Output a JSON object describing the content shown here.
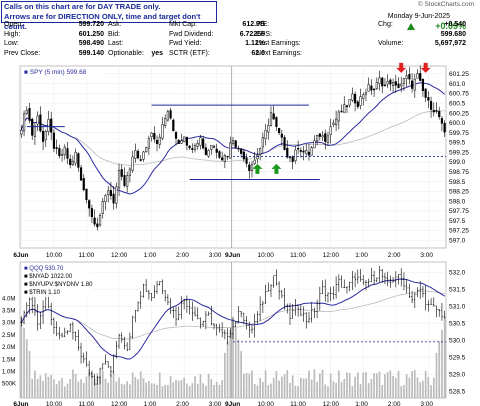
{
  "note": {
    "line1": "Calls on this chart are for DAY TRADE only.",
    "line2": "Arrows are for DIRECTION ONLY, time and target don't count."
  },
  "brand": "© StockCharts.com",
  "date": "Monday  9-Jun-2025",
  "change_pct": "+0.09%",
  "change_label": "Chg:",
  "change_value": "+0.540",
  "quote": {
    "col1": [
      [
        "Open:",
        "599.720"
      ],
      [
        "High:",
        "601.250"
      ],
      [
        "Low:",
        "598.490"
      ],
      [
        "Prev Close:",
        "599.140"
      ]
    ],
    "col2": [
      [
        "Ask:",
        ""
      ],
      [
        "Bid:",
        ""
      ],
      [
        "Last:",
        ""
      ],
      [
        "Optionable:",
        "yes"
      ]
    ],
    "col3": [
      [
        "Mkt Cap:",
        "612.9B"
      ],
      [
        "Fwd Dividend:",
        "6.72255"
      ],
      [
        "Fwd Yield:",
        "1.12%"
      ],
      [
        "SCTR (ETF):",
        "62.0"
      ]
    ],
    "col4": [
      [
        "P/E:",
        ""
      ],
      [
        "EPS:",
        ""
      ],
      [
        "Last Earnings:",
        ""
      ],
      [
        "Next Earnings:",
        ""
      ]
    ],
    "col5": [
      [
        "",
        ""
      ],
      [
        "",
        "+0.540"
      ],
      [
        "",
        "599.680"
      ],
      [
        "Volume:",
        "5,697,972"
      ]
    ]
  },
  "colors": {
    "candle": "#000000",
    "ma_fast": "#2a2aa0",
    "ma_slow": "#bbbbbb",
    "level": "#1a2a9a",
    "arrow_up": "#1a9a1a",
    "arrow_down": "#e02020",
    "volume": "#bbbbbb"
  },
  "chart_data": [
    {
      "type": "candlestick",
      "legend": "■ SPY (5 min) 599.68",
      "x_tick_labels": [
        "6Jun",
        "10:00",
        "11:00",
        "12:00",
        "1:00",
        "2:00",
        "3:00",
        "9Jun",
        "10:00",
        "11:00",
        "12:00",
        "1:00",
        "2:00",
        "3:00"
      ],
      "x_tick_positions": [
        0,
        12,
        24,
        36,
        48,
        60,
        72,
        78,
        90,
        102,
        114,
        126,
        138,
        150
      ],
      "ylim": [
        596.8,
        601.45
      ],
      "y_ticks": [
        597.0,
        597.25,
        597.5,
        597.75,
        598.0,
        598.25,
        598.5,
        598.75,
        599.0,
        599.25,
        599.5,
        599.75,
        600.0,
        600.25,
        600.5,
        600.75,
        601.0,
        601.25
      ],
      "y_tick_labels": [
        "597.0",
        "597.25",
        "597.5",
        "597.75",
        "598.0",
        "598.25",
        "598.5",
        "598.75",
        "599.0",
        "599.25",
        "599.5",
        "599.75",
        "600.0",
        "600.25",
        "600.5",
        "600.75",
        "601.0",
        "601.25"
      ],
      "close_anchors": [
        [
          0,
          599.9
        ],
        [
          2,
          600.4
        ],
        [
          4,
          599.7
        ],
        [
          6,
          600.15
        ],
        [
          8,
          599.55
        ],
        [
          10,
          600.0
        ],
        [
          12,
          599.4
        ],
        [
          14,
          599.1
        ],
        [
          16,
          599.3
        ],
        [
          18,
          598.9
        ],
        [
          20,
          599.2
        ],
        [
          22,
          598.5
        ],
        [
          24,
          598.1
        ],
        [
          26,
          597.6
        ],
        [
          28,
          597.4
        ],
        [
          30,
          597.9
        ],
        [
          32,
          598.3
        ],
        [
          34,
          598.0
        ],
        [
          36,
          598.7
        ],
        [
          38,
          598.4
        ],
        [
          40,
          598.8
        ],
        [
          42,
          599.3
        ],
        [
          44,
          599.0
        ],
        [
          46,
          599.4
        ],
        [
          48,
          599.8
        ],
        [
          50,
          599.5
        ],
        [
          52,
          599.9
        ],
        [
          54,
          600.3
        ],
        [
          56,
          599.8
        ],
        [
          58,
          599.5
        ],
        [
          60,
          599.7
        ],
        [
          62,
          599.3
        ],
        [
          64,
          599.5
        ],
        [
          66,
          599.6
        ],
        [
          68,
          599.2
        ],
        [
          70,
          599.45
        ],
        [
          72,
          599.3
        ],
        [
          74,
          599.1
        ],
        [
          76,
          599.2
        ],
        [
          77,
          599.45
        ],
        [
          78,
          599.6
        ],
        [
          80,
          599.3
        ],
        [
          82,
          599.15
        ],
        [
          84,
          598.85
        ],
        [
          86,
          599.05
        ],
        [
          88,
          599.35
        ],
        [
          90,
          599.75
        ],
        [
          92,
          600.25
        ],
        [
          94,
          599.85
        ],
        [
          96,
          599.55
        ],
        [
          98,
          599.2
        ],
        [
          100,
          599.05
        ],
        [
          102,
          599.4
        ],
        [
          104,
          599.25
        ],
        [
          106,
          599.2
        ],
        [
          108,
          599.5
        ],
        [
          110,
          599.7
        ],
        [
          112,
          599.6
        ],
        [
          114,
          599.9
        ],
        [
          116,
          600.1
        ],
        [
          118,
          600.3
        ],
        [
          120,
          600.45
        ],
        [
          122,
          600.65
        ],
        [
          124,
          600.5
        ],
        [
          126,
          600.75
        ],
        [
          128,
          600.9
        ],
        [
          130,
          600.85
        ],
        [
          132,
          601.1
        ],
        [
          134,
          600.95
        ],
        [
          136,
          601.05
        ],
        [
          138,
          600.9
        ],
        [
          140,
          601.0
        ],
        [
          142,
          601.15
        ],
        [
          144,
          600.95
        ],
        [
          146,
          601.2
        ],
        [
          148,
          600.8
        ],
        [
          150,
          600.5
        ],
        [
          152,
          600.35
        ],
        [
          154,
          600.15
        ],
        [
          156,
          599.68
        ]
      ],
      "h_levels": [
        {
          "y": 600.45,
          "x": [
            48,
            106
          ]
        },
        {
          "y": 598.55,
          "x": [
            62,
            110
          ]
        },
        {
          "y": 599.9,
          "x": [
            2,
            16
          ]
        }
      ],
      "dashed_level": {
        "y": 599.14,
        "x": [
          78,
          156
        ]
      },
      "arrows_up": [
        {
          "x": 87,
          "y": 598.95
        },
        {
          "x": 94,
          "y": 598.95
        }
      ],
      "arrows_down": [
        {
          "x": 140,
          "y": 601.3
        },
        {
          "x": 149,
          "y": 601.3
        }
      ]
    },
    {
      "type": "line+bar",
      "legend": [
        "■ QQQ 530.70",
        "■ $NYAD 1022.00",
        "■ $NYUPV:$NYDNV 1.80",
        "■ $TRIN 1.10"
      ],
      "ylim": [
        528.3,
        532.3
      ],
      "y_ticks": [
        528.5,
        529.0,
        529.5,
        530.0,
        530.5,
        531.0,
        531.5,
        532.0
      ],
      "y_tick_labels": [
        "528.5",
        "529.0",
        "529.5",
        "530.0",
        "530.5",
        "531.0",
        "531.5",
        "532.0"
      ],
      "volume_ticks": [
        "4.0M",
        "3.5M",
        "3.0M",
        "2.5M",
        "2.0M",
        "1.5M",
        "1.0M",
        "500K"
      ],
      "close_anchors": [
        [
          0,
          530.5
        ],
        [
          3,
          531.3
        ],
        [
          6,
          530.6
        ],
        [
          9,
          531.2
        ],
        [
          12,
          530.4
        ],
        [
          15,
          530.0
        ],
        [
          18,
          530.4
        ],
        [
          21,
          529.8
        ],
        [
          24,
          529.2
        ],
        [
          27,
          528.8
        ],
        [
          30,
          529.4
        ],
        [
          33,
          529.1
        ],
        [
          36,
          530.2
        ],
        [
          39,
          529.8
        ],
        [
          42,
          531.0
        ],
        [
          45,
          531.6
        ],
        [
          48,
          531.3
        ],
        [
          51,
          531.8
        ],
        [
          54,
          531.1
        ],
        [
          57,
          530.7
        ],
        [
          60,
          531.2
        ],
        [
          63,
          530.9
        ],
        [
          66,
          530.5
        ],
        [
          69,
          530.7
        ],
        [
          72,
          530.3
        ],
        [
          75,
          530.1
        ],
        [
          78,
          530.4
        ],
        [
          81,
          530.9
        ],
        [
          84,
          530.2
        ],
        [
          87,
          530.7
        ],
        [
          90,
          531.4
        ],
        [
          93,
          531.9
        ],
        [
          96,
          531.2
        ],
        [
          99,
          530.7
        ],
        [
          102,
          531.0
        ],
        [
          105,
          530.6
        ],
        [
          108,
          530.9
        ],
        [
          111,
          531.5
        ],
        [
          114,
          531.3
        ],
        [
          117,
          531.7
        ],
        [
          120,
          531.5
        ],
        [
          123,
          531.9
        ],
        [
          126,
          531.6
        ],
        [
          129,
          531.8
        ],
        [
          132,
          532.0
        ],
        [
          135,
          531.6
        ],
        [
          138,
          531.9
        ],
        [
          141,
          531.7
        ],
        [
          144,
          531.2
        ],
        [
          147,
          531.5
        ],
        [
          150,
          531.0
        ],
        [
          153,
          530.9
        ],
        [
          156,
          530.7
        ]
      ],
      "dashed_level": {
        "y": 529.95,
        "x": [
          78,
          156
        ]
      }
    }
  ]
}
